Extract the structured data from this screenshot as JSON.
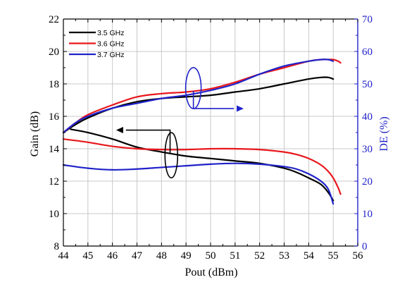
{
  "colors": {
    "black": "#000000",
    "red": "#e8171c",
    "blue": "#1f22c8",
    "grid": "#c8c8c8",
    "right_axis": "#1f22c8"
  },
  "chart_data": {
    "type": "line",
    "title": "",
    "xlabel": "Pout (dBm)",
    "ylabel": "Gain (dB)",
    "y2label": "DE (%)",
    "xlim": [
      44,
      56
    ],
    "ylim": [
      8,
      22
    ],
    "y2lim": [
      0,
      70
    ],
    "x_ticks": [
      "44",
      "45",
      "46",
      "47",
      "48",
      "49",
      "50",
      "51",
      "52",
      "53",
      "54",
      "55",
      "56"
    ],
    "y_ticks": [
      "8",
      "10",
      "12",
      "14",
      "16",
      "18",
      "20",
      "22"
    ],
    "y2_ticks": [
      "0",
      "10",
      "20",
      "30",
      "40",
      "50",
      "60",
      "70"
    ],
    "grid": true,
    "legend_position": "top-left",
    "series": [
      {
        "name": "3.5 GHz",
        "metric": "gain",
        "axis": "left",
        "color": "#000000",
        "x": [
          44.3,
          45,
          46,
          47,
          48,
          49,
          50,
          51,
          52,
          53,
          53.5,
          54,
          54.5,
          54.8,
          55.0
        ],
        "y": [
          15.2,
          15.0,
          14.6,
          14.1,
          13.8,
          13.55,
          13.4,
          13.25,
          13.1,
          12.8,
          12.55,
          12.2,
          11.8,
          11.3,
          10.8
        ]
      },
      {
        "name": "3.6 GHz",
        "metric": "gain",
        "axis": "left",
        "color": "#e8171c",
        "x": [
          44,
          45,
          46,
          47,
          48,
          49,
          50,
          51,
          52,
          53,
          53.5,
          54,
          54.5,
          54.8,
          55.0,
          55.2,
          55.3
        ],
        "y": [
          14.6,
          14.4,
          14.15,
          14.0,
          13.95,
          13.95,
          14.0,
          14.0,
          13.95,
          13.8,
          13.65,
          13.4,
          13.0,
          12.6,
          12.2,
          11.6,
          11.2
        ]
      },
      {
        "name": "3.7 GHz",
        "metric": "gain",
        "axis": "left",
        "color": "#1f22c8",
        "x": [
          44,
          45,
          46,
          47,
          48,
          49,
          50,
          51,
          52,
          53,
          53.5,
          54,
          54.5,
          54.8,
          55.0
        ],
        "y": [
          13.0,
          12.8,
          12.7,
          12.75,
          12.85,
          12.95,
          13.05,
          13.1,
          13.05,
          12.9,
          12.75,
          12.45,
          12.0,
          11.5,
          10.6
        ]
      },
      {
        "name": "3.5 GHz",
        "metric": "DE",
        "axis": "right",
        "color": "#000000",
        "x": [
          44,
          44.5,
          45,
          46,
          47,
          48,
          49,
          50,
          51,
          52,
          53,
          54,
          54.5,
          54.8,
          55.0
        ],
        "y": [
          35.0,
          37.5,
          39.5,
          42.5,
          44.5,
          45.5,
          46.0,
          46.5,
          47.5,
          48.5,
          50.0,
          51.5,
          52.0,
          52.0,
          51.5
        ]
      },
      {
        "name": "3.6 GHz",
        "metric": "DE",
        "axis": "right",
        "color": "#e8171c",
        "x": [
          44,
          44.5,
          45,
          46,
          47,
          48,
          49,
          50,
          51,
          52,
          53,
          54,
          54.5,
          54.8,
          55.0,
          55.2,
          55.3
        ],
        "y": [
          35.0,
          38.0,
          40.5,
          43.5,
          46.0,
          47.0,
          47.5,
          48.5,
          50.5,
          53.0,
          55.0,
          57.0,
          57.5,
          57.5,
          57.5,
          57.0,
          56.5
        ]
      },
      {
        "name": "3.7 GHz",
        "metric": "DE",
        "axis": "right",
        "color": "#1f22c8",
        "x": [
          44,
          44.5,
          45,
          46,
          47,
          48,
          49,
          50,
          51,
          52,
          53,
          54,
          54.5,
          54.8,
          55.0
        ],
        "y": [
          35.0,
          38.0,
          40.0,
          42.5,
          44.0,
          45.5,
          46.5,
          48.0,
          50.0,
          53.0,
          55.5,
          57.0,
          57.5,
          57.5,
          57.0
        ]
      }
    ]
  }
}
